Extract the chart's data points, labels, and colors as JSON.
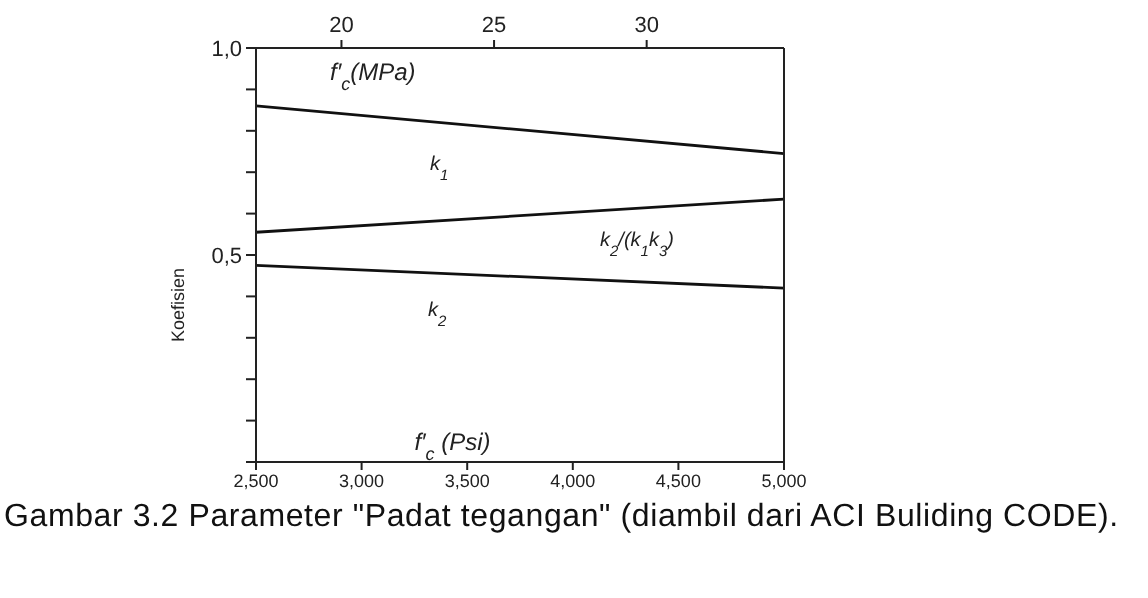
{
  "chart_data": {
    "type": "line",
    "title": "Gambar 3.2 Parameter \"Padat tegangan\" (diambil dari ACI Buliding CODE).",
    "xlabel": "f′$_{c}$ (Psi)",
    "x2label": "f′$_{c}$(MPa)",
    "ylabel": "Koefisien",
    "x": [
      2500,
      5000
    ],
    "series": [
      {
        "color": "#111111",
        "values": [
          0.86,
          0.745
        ]
      },
      {
        "color": "#111111",
        "values": [
          0.555,
          0.635
        ]
      },
      {
        "color": "#111111",
        "values": [
          0.475,
          0.42
        ]
      }
    ],
    "annotations": [
      "k$_{1}$",
      "k$_{2}$/(k$_{1}$k$_{3}$)",
      "k$_{2}$"
    ],
    "xlim": [
      2500,
      5000
    ],
    "xticks": [
      {
        "value": 2500,
        "label": "2,500"
      },
      {
        "value": 3000,
        "label": "3,000"
      },
      {
        "value": 3500,
        "label": "3,500"
      },
      {
        "value": 4000,
        "label": "4,000"
      },
      {
        "value": 4500,
        "label": "4,500"
      },
      {
        "value": 5000,
        "label": "5,000"
      }
    ],
    "x2lim": [
      17.2,
      34.5
    ],
    "x2ticks": [
      20,
      25,
      30
    ],
    "ylim": [
      0,
      1
    ],
    "yticks": [
      {
        "value": 0,
        "label": null
      },
      {
        "value": 0.1,
        "label": null
      },
      {
        "value": 0.2,
        "label": null
      },
      {
        "value": 0.3,
        "label": null
      },
      {
        "value": 0.4,
        "label": null
      },
      {
        "value": 0.5,
        "label": "0,5"
      },
      {
        "value": 0.6,
        "label": null
      },
      {
        "value": 0.7,
        "label": null
      },
      {
        "value": 0.8,
        "label": null
      },
      {
        "value": 0.9,
        "label": null
      },
      {
        "value": 1,
        "label": "1,0"
      }
    ],
    "legend": false,
    "marker": "none",
    "line_style": "solid"
  }
}
